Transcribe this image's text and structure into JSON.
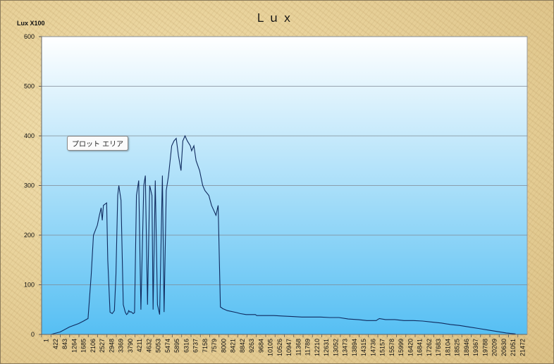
{
  "chart_data": {
    "type": "line",
    "title": "Ｌｕｘ",
    "ylabel": "Lux X100",
    "xlabel": "",
    "ylim": [
      0,
      600
    ],
    "y_ticks": [
      0,
      100,
      200,
      300,
      400,
      500,
      600
    ],
    "x_range": [
      1,
      22000
    ],
    "x_tick_labels": [
      "1",
      "422",
      "843",
      "1264",
      "1685",
      "2106",
      "2527",
      "2948",
      "3369",
      "3790",
      "4211",
      "4632",
      "5053",
      "5474",
      "5895",
      "6316",
      "6737",
      "7158",
      "7579",
      "8000",
      "8421",
      "8842",
      "9263",
      "9684",
      "10105",
      "10526",
      "10947",
      "11368",
      "11789",
      "12210",
      "12631",
      "13052",
      "13473",
      "13894",
      "14315",
      "14736",
      "15157",
      "15578",
      "15999",
      "16420",
      "16841",
      "17262",
      "17683",
      "18104",
      "18525",
      "18946",
      "19367",
      "19788",
      "20209",
      "20630",
      "21051",
      "21472"
    ],
    "grid": "horizontal",
    "legend": "none",
    "colors": {
      "line": "#0f2a5e",
      "plot_top": "#ffffff",
      "plot_bottom": "#56bff3"
    },
    "series": [
      {
        "x": [
          1,
          422,
          843,
          1264,
          1685,
          1900,
          2106,
          2250,
          2350,
          2527,
          2620,
          2700,
          2750,
          2800,
          2948,
          3000,
          3100,
          3200,
          3300,
          3369,
          3450,
          3500,
          3600,
          3700,
          3790,
          3850,
          3900,
          3950,
          4000,
          4050,
          4150,
          4211,
          4300,
          4400,
          4500,
          4632,
          4700,
          4800,
          4900,
          5000,
          5053,
          5150,
          5250,
          5350,
          5474,
          5550,
          5650,
          5750,
          5895,
          6000,
          6100,
          6200,
          6316,
          6400,
          6500,
          6600,
          6737,
          6800,
          6900,
          7000,
          7158,
          7300,
          7400,
          7579,
          7700,
          7800,
          7900,
          8000,
          8100,
          8150,
          8200,
          8421,
          8842,
          9000,
          9263,
          9500,
          9684,
          9750,
          10105,
          10526,
          10947,
          11368,
          11789,
          12210,
          12631,
          13052,
          13473,
          13894,
          14315,
          14736,
          15157,
          15300,
          15578,
          15999,
          16420,
          16841,
          17262,
          17683,
          18104,
          18525,
          18946,
          19367,
          19788,
          20209,
          20630,
          21051,
          21472
        ],
        "y": [
          0,
          0,
          5,
          15,
          22,
          27,
          32,
          120,
          200,
          220,
          240,
          255,
          230,
          260,
          265,
          150,
          45,
          42,
          48,
          120,
          280,
          300,
          270,
          60,
          45,
          40,
          42,
          48,
          45,
          46,
          42,
          44,
          280,
          310,
          50,
          300,
          320,
          60,
          300,
          280,
          50,
          310,
          60,
          40,
          320,
          45,
          290,
          320,
          380,
          390,
          395,
          360,
          330,
          390,
          400,
          390,
          380,
          370,
          380,
          350,
          330,
          300,
          290,
          280,
          260,
          250,
          240,
          260,
          55,
          54,
          52,
          48,
          44,
          42,
          40,
          40,
          40,
          38,
          38,
          38,
          37,
          36,
          35,
          35,
          35,
          34,
          34,
          31,
          30,
          28,
          28,
          32,
          30,
          30,
          28,
          28,
          27,
          25,
          23,
          20,
          18,
          15,
          12,
          9,
          6,
          3,
          1
        ]
      }
    ],
    "annotations": [
      {
        "text": "プロット エリア"
      }
    ]
  }
}
